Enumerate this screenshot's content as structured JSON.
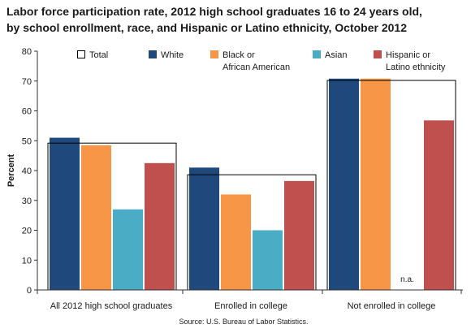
{
  "title_line1": "Labor force participation rate, 2012 high school graduates 16 to 24 years old,",
  "title_line2": "by school enrollment, race, and Hispanic or Latino ethnicity, October 2012",
  "source": "Source: U.S. Bureau of Labor Statistics.",
  "colors": {
    "white": "#1f497d",
    "black": "#f79646",
    "asian": "#4bacc6",
    "hispanic": "#c0504d",
    "total_outline": "#000000"
  },
  "chart_data": {
    "type": "bar",
    "title": "Labor force participation rate, 2012 high school graduates 16 to 24 years old, by school enrollment, race, and Hispanic or Latino ethnicity, October 2012",
    "ylabel": "Percent",
    "xlabel": "",
    "ylim": [
      0,
      80
    ],
    "yticks": [
      "0",
      "10",
      "20",
      "30",
      "40",
      "50",
      "60",
      "70",
      "80"
    ],
    "categories": [
      "All 2012 high school graduates",
      "Enrolled in college",
      "Not enrolled in college"
    ],
    "total": {
      "name": "Total",
      "values": [
        49.2,
        38.6,
        70.2
      ]
    },
    "series": [
      {
        "name": "White",
        "values": [
          51,
          41,
          70.8
        ]
      },
      {
        "name": "Black or African American",
        "legend_lines": [
          "Black or",
          "African American"
        ],
        "values": [
          48.5,
          32,
          70.8
        ]
      },
      {
        "name": "Asian",
        "values": [
          27,
          20,
          null
        ]
      },
      {
        "name": "Hispanic or Latino ethnicity",
        "legend_lines": [
          "Hispanic or",
          "Latino ethnicity"
        ],
        "values": [
          42.5,
          36.5,
          56.8
        ]
      }
    ],
    "na_label": "n.a.",
    "legend_position": "top",
    "grid": false
  }
}
